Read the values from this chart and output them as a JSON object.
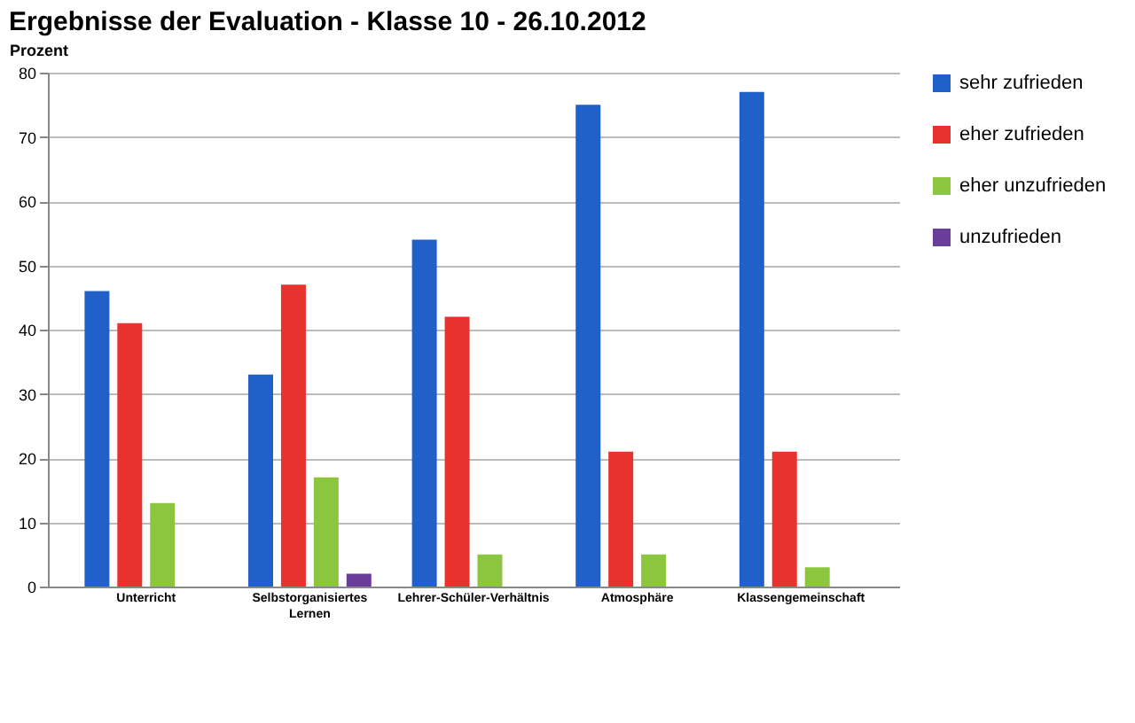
{
  "chart_data": {
    "type": "bar",
    "title": "Ergebnisse der Evaluation - Klasse 10 - 26.10.2012",
    "ylabel": "Prozent",
    "categories": [
      "Unterricht",
      "Selbstorganisiertes Lernen",
      "Lehrer-Schüler-Verhältnis",
      "Atmosphäre",
      "Klassengemeinschaft"
    ],
    "series": [
      {
        "name": "sehr zufrieden",
        "color": "#2060c8",
        "values": [
          46,
          33,
          54,
          75,
          77
        ]
      },
      {
        "name": "eher zufrieden",
        "color": "#e8322e",
        "values": [
          41,
          47,
          42,
          21,
          21
        ]
      },
      {
        "name": "eher unzufrieden",
        "color": "#8cc63e",
        "values": [
          13,
          17,
          5,
          5,
          3
        ]
      },
      {
        "name": "unzufrieden",
        "color": "#6b3d9a",
        "values": [
          0,
          2,
          0,
          0,
          0
        ]
      }
    ],
    "ylim": [
      0,
      80
    ],
    "yticks": [
      0,
      10,
      20,
      30,
      40,
      50,
      60,
      70,
      80
    ],
    "grid": "y",
    "legend": "right"
  }
}
